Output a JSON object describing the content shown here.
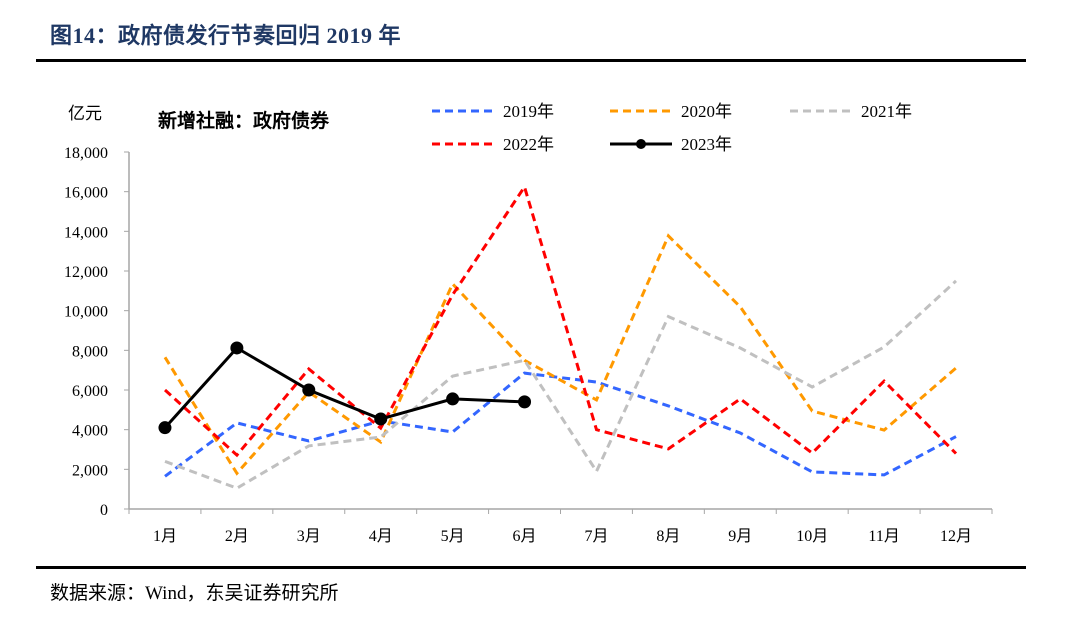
{
  "figure": {
    "title": "图14：政府债发行节奏回归 2019 年",
    "source": "数据来源：Wind，东吴证券研究所"
  },
  "chart_data": {
    "type": "line",
    "title": "新增社融：政府债券",
    "ylabel": "亿元",
    "xlabel": "",
    "ylim": [
      0,
      18000
    ],
    "yticks": [
      0,
      2000,
      4000,
      6000,
      8000,
      10000,
      12000,
      14000,
      16000,
      18000
    ],
    "ytick_labels": [
      "0",
      "2,000",
      "4,000",
      "6,000",
      "8,000",
      "10,000",
      "12,000",
      "14,000",
      "16,000",
      "18,000"
    ],
    "categories": [
      "1月",
      "2月",
      "3月",
      "4月",
      "5月",
      "6月",
      "7月",
      "8月",
      "9月",
      "10月",
      "11月",
      "12月"
    ],
    "grid": false,
    "legend_position": "top",
    "series": [
      {
        "name": "2019年",
        "color": "#3366ff",
        "style": "dashed",
        "marker": false,
        "values": [
          1650,
          4340,
          3430,
          4440,
          3880,
          6850,
          6400,
          5200,
          3830,
          1870,
          1720,
          3650
        ]
      },
      {
        "name": "2020年",
        "color": "#ff9900",
        "style": "dashed",
        "marker": false,
        "values": [
          7650,
          1800,
          5900,
          3380,
          11350,
          7500,
          5500,
          13770,
          10190,
          4940,
          3980,
          7110
        ]
      },
      {
        "name": "2021年",
        "color": "#c0c0c0",
        "style": "dashed",
        "marker": false,
        "values": [
          2400,
          1050,
          3180,
          3630,
          6700,
          7500,
          1900,
          9700,
          8120,
          6150,
          8170,
          11500
        ]
      },
      {
        "name": "2022年",
        "color": "#ff0000",
        "style": "dashed",
        "marker": false,
        "values": [
          6000,
          2720,
          7060,
          4080,
          10800,
          16240,
          4000,
          3030,
          5550,
          2820,
          6450,
          2800
        ]
      },
      {
        "name": "2023年",
        "color": "#000000",
        "style": "solid",
        "marker": true,
        "values": [
          4100,
          8120,
          6000,
          4540,
          5550,
          5400,
          null,
          null,
          null,
          null,
          null,
          null
        ]
      }
    ]
  }
}
